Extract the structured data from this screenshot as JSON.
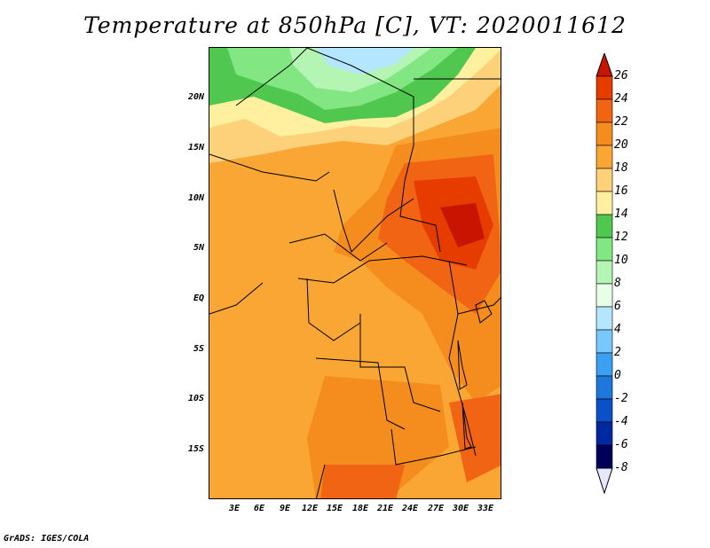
{
  "title": "Temperature at 850hPa [C], VT: 2020011612",
  "footer": "GrADS: IGES/COLA",
  "map": {
    "variable": "Temperature at 850hPa",
    "unit": "C",
    "valid_time": "2020011612",
    "lat_labels": [
      "20N",
      "15N",
      "10N",
      "5N",
      "EQ",
      "5S",
      "10S",
      "15S"
    ],
    "lon_labels": [
      "3E",
      "6E",
      "9E",
      "12E",
      "15E",
      "18E",
      "21E",
      "24E",
      "27E",
      "30E",
      "33E"
    ]
  },
  "colorbar": {
    "labels": [
      "26",
      "24",
      "22",
      "20",
      "18",
      "16",
      "14",
      "12",
      "10",
      "8",
      "6",
      "4",
      "2",
      "0",
      "-2",
      "-4",
      "-6",
      "-8"
    ],
    "colors": [
      "#c81400",
      "#e63c00",
      "#f06414",
      "#f58c1e",
      "#f9a635",
      "#fdd07a",
      "#fff0a0",
      "#50c850",
      "#82e682",
      "#b4f5b4",
      "#e6ffe6",
      "#b4e6ff",
      "#78c8ff",
      "#3ca0f0",
      "#1e78dc",
      "#0a50c8",
      "#0028a0",
      "#00005a",
      "#e6e6ff"
    ]
  }
}
